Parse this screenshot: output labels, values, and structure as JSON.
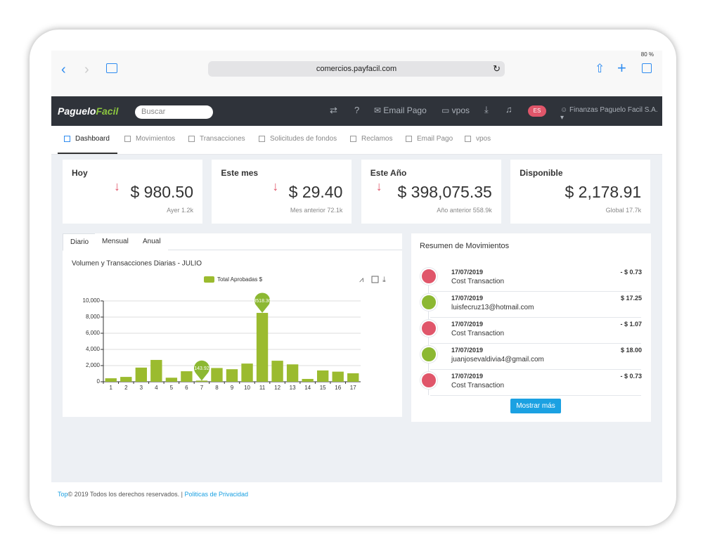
{
  "browser": {
    "battery": "80 %",
    "url": "comercios.payfacil.com"
  },
  "navbar": {
    "logo_first": "Paguelo",
    "logo_second": "Facil",
    "search_placeholder": "Buscar",
    "email_pago": "Email Pago",
    "vpos": "vpos",
    "language": "ES",
    "user": "Finanzas Paguelo Facil S.A."
  },
  "tabs": [
    "Dashboard",
    "Movimientos",
    "Transacciones",
    "Solicitudes de fondos",
    "Reclamos",
    "Email Pago",
    "vpos"
  ],
  "active_tab": 0,
  "stats": [
    {
      "title": "Hoy",
      "value": "$ 980.50",
      "note": "Ayer 1.2k",
      "trend": "down"
    },
    {
      "title": "Este mes",
      "value": "$ 29.40",
      "note": "Mes anterior 72.1k",
      "trend": "down"
    },
    {
      "title": "Este Año",
      "value": "$ 398,075.35",
      "note": "Año anterior 558.9k",
      "trend": "down"
    },
    {
      "title": "Disponible",
      "value": "$ 2,178.91",
      "note": "Global 17.7k"
    }
  ],
  "chart_panel": {
    "tabs": [
      "Diario",
      "Mensual",
      "Anual"
    ],
    "active_tab": 0
  },
  "chart_data": {
    "type": "bar",
    "title": "Volumen y Transacciones Diarias - JULIO",
    "categories": [
      "1",
      "2",
      "3",
      "4",
      "5",
      "6",
      "7",
      "8",
      "9",
      "10",
      "11",
      "12",
      "13",
      "14",
      "15",
      "16",
      "17"
    ],
    "series": [
      {
        "name": "Total Aprobadas $",
        "color": "#9bbb2f",
        "values": [
          430,
          600,
          1750,
          2700,
          500,
          1300,
          143.92,
          1700,
          1550,
          2250,
          8518.36,
          2600,
          2150,
          350,
          1400,
          1250,
          1050
        ]
      }
    ],
    "ylim": [
      0,
      10000
    ],
    "yticks": [
      0,
      {
        "value": 2000,
        "label": "2,000"
      },
      {
        "value": 4000,
        "label": "4,000"
      },
      {
        "value": 6000,
        "label": "6,000"
      },
      {
        "value": 8000,
        "label": "8,000"
      },
      {
        "value": 10000,
        "label": "10,000"
      }
    ],
    "grid": true,
    "mark_points": [
      "max",
      "min"
    ],
    "mark_color": "#8cb832"
  },
  "movements": {
    "title": "Resumen de Movimientos",
    "items": [
      {
        "date": "17/07/2019",
        "description": "Cost Transaction",
        "amount": "- $ 0.73",
        "color": "#e0566a"
      },
      {
        "date": "17/07/2019",
        "description": "luisfecruz13@hotmail.com",
        "amount": "$ 17.25",
        "color": "#8cb832"
      },
      {
        "date": "17/07/2019",
        "description": "Cost Transaction",
        "amount": "- $ 1.07",
        "color": "#e0566a"
      },
      {
        "date": "17/07/2019",
        "description": "juanjosevaldivia4@gmail.com",
        "amount": "$ 18.00",
        "color": "#8cb832"
      },
      {
        "date": "17/07/2019",
        "description": "Cost Transaction",
        "amount": "- $ 0.73",
        "color": "#e0566a"
      }
    ],
    "button": "Mostrar más"
  },
  "footer": {
    "top": "Top",
    "copyright": "© 2019 Todos los derechos reservados.",
    "separator": "|",
    "privacy": "Politicas de Privacidad"
  }
}
